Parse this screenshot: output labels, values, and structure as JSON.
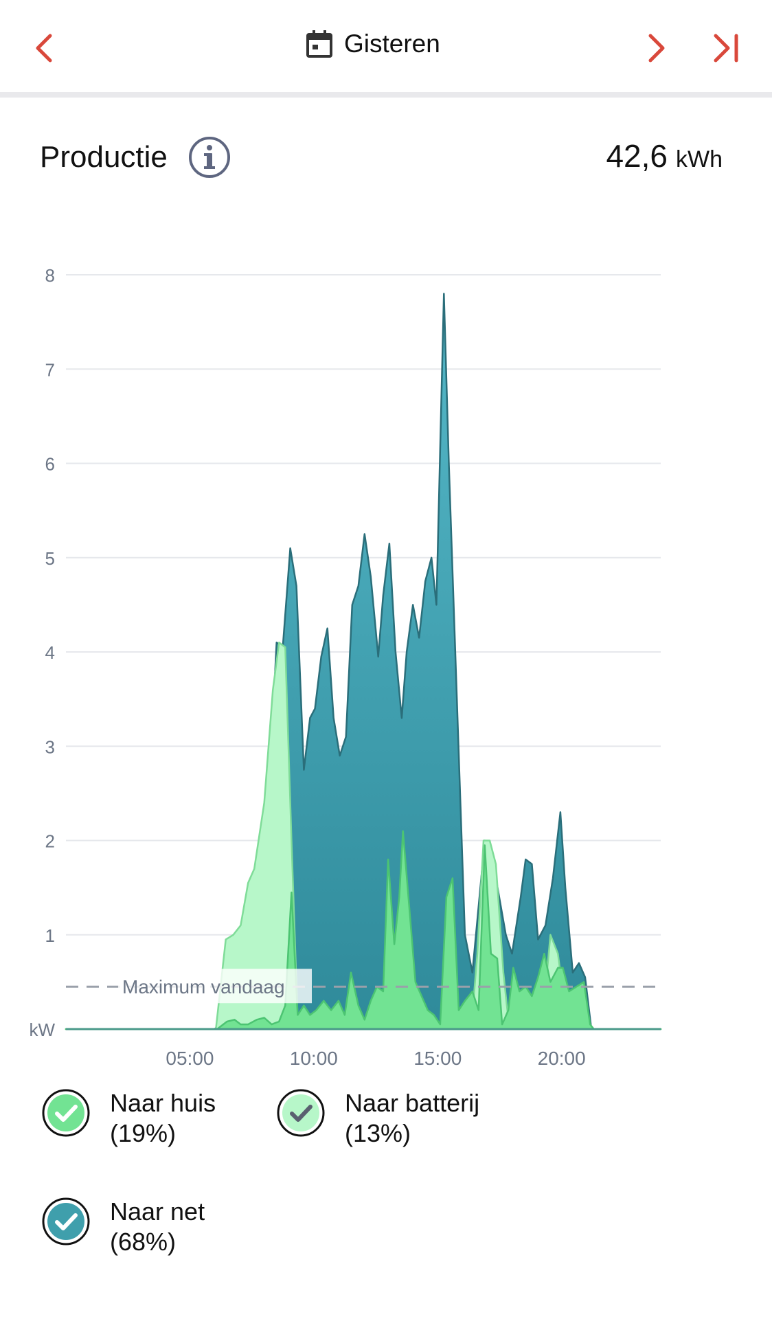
{
  "header": {
    "date_label": "Gisteren",
    "accent": "#d9483b"
  },
  "summary": {
    "title": "Productie",
    "total_value": "42,6",
    "total_unit": "kWh"
  },
  "chart_data": {
    "type": "area",
    "title": "",
    "xlabel": "",
    "ylabel": "kW",
    "xlim": [
      0,
      24
    ],
    "ylim": [
      0,
      8
    ],
    "y_ticks": [
      "8",
      "7",
      "6",
      "5",
      "4",
      "3",
      "2",
      "1"
    ],
    "x_ticks": [
      {
        "label": "05:00",
        "value": 5
      },
      {
        "label": "10:00",
        "value": 10
      },
      {
        "label": "15:00",
        "value": 15
      },
      {
        "label": "20:00",
        "value": 20
      }
    ],
    "reference_line": {
      "label": "Maximum vandaag",
      "value": 0.45
    },
    "grid": true,
    "legend_position": "bottom",
    "series": [
      {
        "name": "Naar net",
        "percent": "(68%)",
        "color": "#3f9fac",
        "points": [
          [
            0,
            0
          ],
          [
            6.0,
            0
          ],
          [
            6.4,
            0.1
          ],
          [
            7.0,
            0.2
          ],
          [
            7.5,
            0.4
          ],
          [
            8.0,
            1.5
          ],
          [
            8.5,
            4.1
          ],
          [
            8.75,
            4.05
          ],
          [
            9.05,
            5.1
          ],
          [
            9.3,
            4.7
          ],
          [
            9.6,
            2.75
          ],
          [
            9.85,
            3.3
          ],
          [
            10.05,
            3.4
          ],
          [
            10.3,
            3.95
          ],
          [
            10.55,
            4.25
          ],
          [
            10.8,
            3.3
          ],
          [
            11.05,
            2.9
          ],
          [
            11.3,
            3.1
          ],
          [
            11.55,
            4.5
          ],
          [
            11.8,
            4.7
          ],
          [
            12.05,
            5.25
          ],
          [
            12.3,
            4.8
          ],
          [
            12.6,
            3.95
          ],
          [
            12.8,
            4.6
          ],
          [
            13.05,
            5.15
          ],
          [
            13.3,
            4.0
          ],
          [
            13.55,
            3.3
          ],
          [
            13.75,
            4.0
          ],
          [
            14.0,
            4.5
          ],
          [
            14.25,
            4.15
          ],
          [
            14.5,
            4.75
          ],
          [
            14.75,
            5.0
          ],
          [
            14.95,
            4.5
          ],
          [
            15.25,
            7.8
          ],
          [
            15.45,
            6.0
          ],
          [
            16.1,
            1.0
          ],
          [
            16.4,
            0.6
          ],
          [
            16.9,
            2.0
          ],
          [
            17.25,
            1.75
          ],
          [
            17.75,
            1.0
          ],
          [
            18.0,
            0.8
          ],
          [
            18.35,
            1.4
          ],
          [
            18.55,
            1.8
          ],
          [
            18.8,
            1.75
          ],
          [
            19.05,
            0.95
          ],
          [
            19.35,
            1.1
          ],
          [
            19.65,
            1.6
          ],
          [
            19.95,
            2.3
          ],
          [
            20.15,
            1.5
          ],
          [
            20.45,
            0.6
          ],
          [
            20.7,
            0.7
          ],
          [
            20.95,
            0.55
          ],
          [
            21.2,
            0
          ],
          [
            24,
            0
          ]
        ]
      },
      {
        "name": "Naar batterij",
        "percent": "(13%)",
        "color": "#b7f7c9",
        "points": [
          [
            0,
            0
          ],
          [
            6.05,
            0
          ],
          [
            6.45,
            0.95
          ],
          [
            6.75,
            1.0
          ],
          [
            7.05,
            1.1
          ],
          [
            7.35,
            1.55
          ],
          [
            7.6,
            1.7
          ],
          [
            8.0,
            2.4
          ],
          [
            8.35,
            3.6
          ],
          [
            8.6,
            4.1
          ],
          [
            8.85,
            4.05
          ],
          [
            9.1,
            2.0
          ],
          [
            9.35,
            0.1
          ],
          [
            9.6,
            0
          ],
          [
            16.35,
            0
          ],
          [
            16.6,
            0.8
          ],
          [
            16.85,
            2.0
          ],
          [
            17.1,
            2.0
          ],
          [
            17.35,
            1.75
          ],
          [
            17.65,
            0.6
          ],
          [
            17.85,
            0.1
          ],
          [
            18.1,
            0
          ],
          [
            19.2,
            0
          ],
          [
            19.55,
            1.0
          ],
          [
            19.85,
            0.8
          ],
          [
            20.15,
            0.2
          ],
          [
            20.4,
            0
          ],
          [
            24,
            0
          ]
        ]
      },
      {
        "name": "Naar huis",
        "percent": "(19%)",
        "color": "#72e393",
        "points": [
          [
            0,
            0
          ],
          [
            6.1,
            0
          ],
          [
            6.5,
            0.08
          ],
          [
            6.8,
            0.1
          ],
          [
            7.05,
            0.05
          ],
          [
            7.35,
            0.05
          ],
          [
            7.7,
            0.1
          ],
          [
            8.0,
            0.12
          ],
          [
            8.3,
            0.05
          ],
          [
            8.6,
            0.08
          ],
          [
            8.85,
            0.25
          ],
          [
            9.1,
            1.45
          ],
          [
            9.35,
            0.15
          ],
          [
            9.6,
            0.25
          ],
          [
            9.85,
            0.15
          ],
          [
            10.1,
            0.2
          ],
          [
            10.4,
            0.3
          ],
          [
            10.7,
            0.2
          ],
          [
            11.0,
            0.3
          ],
          [
            11.25,
            0.15
          ],
          [
            11.5,
            0.6
          ],
          [
            11.8,
            0.25
          ],
          [
            12.05,
            0.1
          ],
          [
            12.3,
            0.3
          ],
          [
            12.55,
            0.45
          ],
          [
            12.8,
            0.4
          ],
          [
            13.0,
            1.8
          ],
          [
            13.25,
            0.9
          ],
          [
            13.45,
            1.4
          ],
          [
            13.6,
            2.1
          ],
          [
            13.85,
            1.3
          ],
          [
            14.1,
            0.5
          ],
          [
            14.35,
            0.35
          ],
          [
            14.6,
            0.2
          ],
          [
            14.85,
            0.15
          ],
          [
            15.1,
            0.05
          ],
          [
            15.35,
            1.4
          ],
          [
            15.6,
            1.6
          ],
          [
            15.85,
            0.2
          ],
          [
            16.1,
            0.3
          ],
          [
            16.4,
            0.4
          ],
          [
            16.65,
            0.2
          ],
          [
            16.9,
            1.95
          ],
          [
            17.15,
            0.8
          ],
          [
            17.4,
            0.75
          ],
          [
            17.6,
            0.05
          ],
          [
            17.85,
            0.2
          ],
          [
            18.05,
            0.65
          ],
          [
            18.3,
            0.4
          ],
          [
            18.55,
            0.45
          ],
          [
            18.8,
            0.35
          ],
          [
            19.05,
            0.55
          ],
          [
            19.3,
            0.8
          ],
          [
            19.55,
            0.5
          ],
          [
            19.85,
            0.65
          ],
          [
            20.05,
            0.65
          ],
          [
            20.3,
            0.4
          ],
          [
            20.6,
            0.45
          ],
          [
            20.9,
            0.5
          ],
          [
            21.15,
            0.05
          ],
          [
            21.3,
            0
          ],
          [
            24,
            0
          ]
        ]
      }
    ]
  },
  "legend": {
    "items": [
      {
        "label": "Naar huis",
        "percent": "(19%)",
        "circle_color": "#72e393",
        "check_color": "#ffffff"
      },
      {
        "label": "Naar batterij",
        "percent": "(13%)",
        "circle_color": "#b7f7c9",
        "check_color": "#5a6070"
      },
      {
        "label": "Naar net",
        "percent": "(68%)",
        "circle_color": "#3f9fac",
        "check_color": "#ffffff"
      }
    ]
  }
}
